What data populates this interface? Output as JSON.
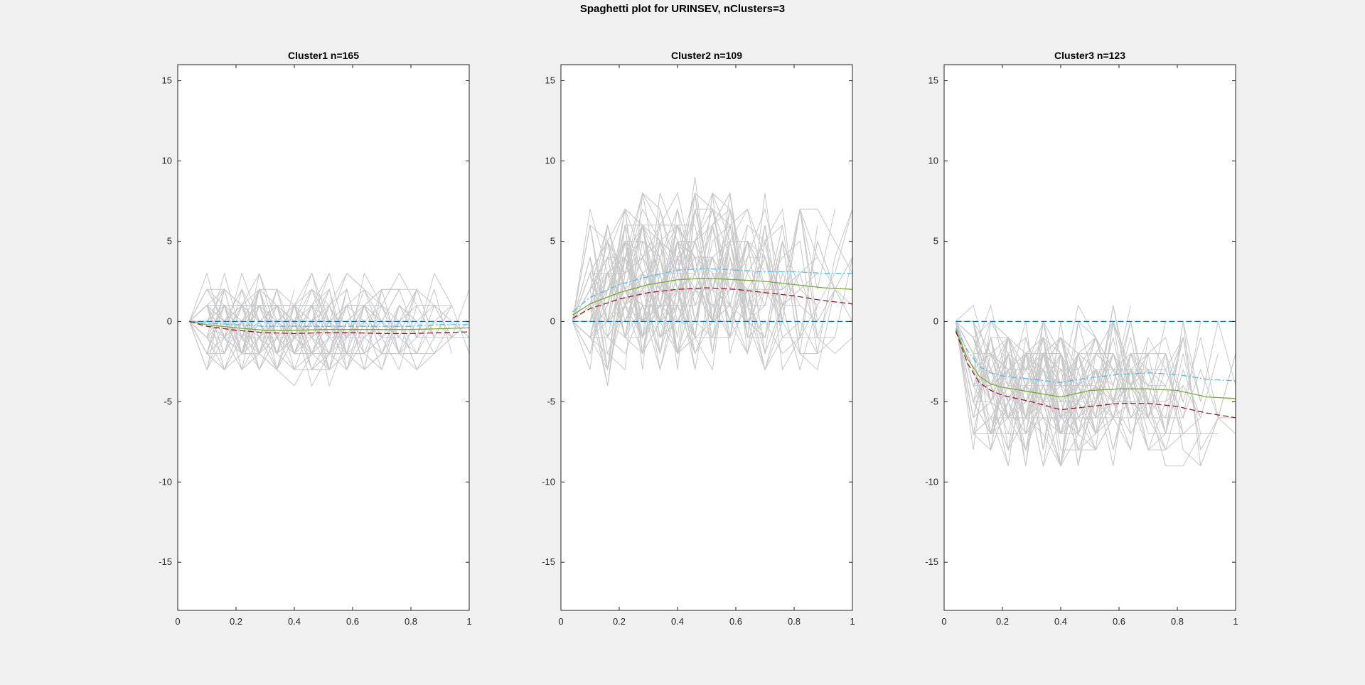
{
  "figure": {
    "title": "Spaghetti plot for URINSEV, nClusters=3"
  },
  "colors": {
    "background": "#f0f0f0",
    "axes": "#ffffff",
    "spaghetti": "#c8c8c8",
    "zero_line": "#0072bd",
    "upper_band": "#4dbeee",
    "mean_line": "#77ac30",
    "lower_band": "#a2142f"
  },
  "chart_data": [
    {
      "type": "line",
      "title": "Cluster1 n=165",
      "xlabel": "",
      "ylabel": "",
      "xlim": [
        0,
        1
      ],
      "ylim": [
        -18,
        16
      ],
      "xticks": [
        0,
        0.2,
        0.4,
        0.6,
        0.8,
        1
      ],
      "xtick_labels": [
        "0",
        "0.2",
        "0.4",
        "0.6",
        "0.8",
        "1"
      ],
      "yticks": [
        -15,
        -10,
        -5,
        0,
        5,
        10,
        15
      ],
      "ytick_labels": [
        "-15",
        "-10",
        "-5",
        "0",
        "5",
        "10",
        "15"
      ],
      "grid": false,
      "spaghetti": {
        "count": 60,
        "x_start": 0.04,
        "x_step": 0.06,
        "spread": 2.4,
        "jitter": 2.2,
        "min": -9,
        "max": 6
      },
      "series": [
        {
          "style": "dashed",
          "color": "#0072bd",
          "x": [
            0.04,
            1
          ],
          "values": [
            0,
            0
          ]
        },
        {
          "style": "dashdot",
          "color": "#4dbeee",
          "x": [
            0.04,
            0.1,
            0.2,
            0.3,
            0.4,
            0.5,
            0.6,
            0.7,
            0.8,
            0.9,
            1
          ],
          "values": [
            0,
            -0.1,
            -0.2,
            -0.3,
            -0.3,
            -0.3,
            -0.3,
            -0.3,
            -0.3,
            -0.2,
            -0.2
          ]
        },
        {
          "style": "solid",
          "color": "#77ac30",
          "x": [
            0.04,
            0.1,
            0.2,
            0.3,
            0.4,
            0.5,
            0.6,
            0.7,
            0.8,
            0.9,
            1
          ],
          "values": [
            0,
            -0.2,
            -0.4,
            -0.55,
            -0.55,
            -0.5,
            -0.5,
            -0.5,
            -0.5,
            -0.45,
            -0.4
          ]
        },
        {
          "style": "dashed",
          "color": "#a2142f",
          "x": [
            0.04,
            0.1,
            0.2,
            0.3,
            0.4,
            0.5,
            0.6,
            0.7,
            0.8,
            0.9,
            1
          ],
          "values": [
            0,
            -0.3,
            -0.55,
            -0.7,
            -0.75,
            -0.7,
            -0.7,
            -0.75,
            -0.75,
            -0.7,
            -0.65
          ]
        }
      ]
    },
    {
      "type": "line",
      "title": "Cluster2 n=109",
      "xlabel": "",
      "ylabel": "",
      "xlim": [
        0,
        1
      ],
      "ylim": [
        -18,
        16
      ],
      "xticks": [
        0,
        0.2,
        0.4,
        0.6,
        0.8,
        1
      ],
      "xtick_labels": [
        "0",
        "0.2",
        "0.4",
        "0.6",
        "0.8",
        "1"
      ],
      "yticks": [
        -15,
        -10,
        -5,
        0,
        5,
        10,
        15
      ],
      "ytick_labels": [
        "-15",
        "-10",
        "-5",
        "0",
        "5",
        "10",
        "15"
      ],
      "grid": false,
      "spaghetti": {
        "count": 55,
        "x_start": 0.04,
        "x_step": 0.06,
        "spread": 4.5,
        "jitter": 4.0,
        "min": -13,
        "max": 15
      },
      "series": [
        {
          "style": "dashed",
          "color": "#0072bd",
          "x": [
            0.04,
            1
          ],
          "values": [
            0,
            0
          ]
        },
        {
          "style": "dashdot",
          "color": "#4dbeee",
          "x": [
            0.04,
            0.1,
            0.2,
            0.3,
            0.4,
            0.5,
            0.6,
            0.7,
            0.8,
            0.9,
            1
          ],
          "values": [
            0.6,
            1.5,
            2.3,
            2.8,
            3.2,
            3.3,
            3.2,
            3.1,
            3.1,
            3.0,
            3.0
          ]
        },
        {
          "style": "solid",
          "color": "#77ac30",
          "x": [
            0.04,
            0.1,
            0.2,
            0.3,
            0.4,
            0.5,
            0.6,
            0.7,
            0.8,
            0.9,
            1
          ],
          "values": [
            0.4,
            1.1,
            1.8,
            2.3,
            2.6,
            2.7,
            2.6,
            2.5,
            2.3,
            2.1,
            2.0
          ]
        },
        {
          "style": "dashed",
          "color": "#a2142f",
          "x": [
            0.04,
            0.1,
            0.2,
            0.3,
            0.4,
            0.5,
            0.6,
            0.7,
            0.8,
            0.9,
            1
          ],
          "values": [
            0.2,
            0.8,
            1.4,
            1.8,
            2.0,
            2.1,
            2.0,
            1.8,
            1.6,
            1.3,
            1.1
          ]
        }
      ]
    },
    {
      "type": "line",
      "title": "Cluster3 n=123",
      "xlabel": "",
      "ylabel": "",
      "xlim": [
        0,
        1
      ],
      "ylim": [
        -18,
        16
      ],
      "xticks": [
        0,
        0.2,
        0.4,
        0.6,
        0.8,
        1
      ],
      "xtick_labels": [
        "0",
        "0.2",
        "0.4",
        "0.6",
        "0.8",
        "1"
      ],
      "yticks": [
        -15,
        -10,
        -5,
        0,
        5,
        10,
        15
      ],
      "ytick_labels": [
        "-15",
        "-10",
        "-5",
        "0",
        "5",
        "10",
        "15"
      ],
      "grid": false,
      "spaghetti": {
        "count": 58,
        "x_start": 0.04,
        "x_step": 0.06,
        "spread": 3.6,
        "jitter": 3.4,
        "min": -17,
        "max": 8
      },
      "series": [
        {
          "style": "dashed",
          "color": "#0072bd",
          "x": [
            0.04,
            1
          ],
          "values": [
            0,
            0
          ]
        },
        {
          "style": "dashdot",
          "color": "#4dbeee",
          "x": [
            0.04,
            0.08,
            0.12,
            0.16,
            0.2,
            0.3,
            0.4,
            0.5,
            0.6,
            0.7,
            0.8,
            0.9,
            1
          ],
          "values": [
            -0.4,
            -1.8,
            -2.8,
            -3.2,
            -3.4,
            -3.6,
            -3.8,
            -3.5,
            -3.3,
            -3.2,
            -3.3,
            -3.6,
            -3.7
          ]
        },
        {
          "style": "solid",
          "color": "#77ac30",
          "x": [
            0.04,
            0.08,
            0.12,
            0.16,
            0.2,
            0.3,
            0.4,
            0.5,
            0.6,
            0.7,
            0.8,
            0.9,
            1
          ],
          "values": [
            -0.5,
            -2.3,
            -3.4,
            -3.9,
            -4.1,
            -4.4,
            -4.7,
            -4.3,
            -4.2,
            -4.2,
            -4.3,
            -4.7,
            -4.8
          ]
        },
        {
          "style": "dashed",
          "color": "#a2142f",
          "x": [
            0.04,
            0.08,
            0.12,
            0.16,
            0.2,
            0.3,
            0.4,
            0.5,
            0.6,
            0.7,
            0.8,
            0.9,
            1
          ],
          "values": [
            -0.6,
            -2.6,
            -3.8,
            -4.3,
            -4.6,
            -5.0,
            -5.5,
            -5.3,
            -5.1,
            -5.1,
            -5.3,
            -5.7,
            -6.0
          ]
        }
      ]
    }
  ]
}
